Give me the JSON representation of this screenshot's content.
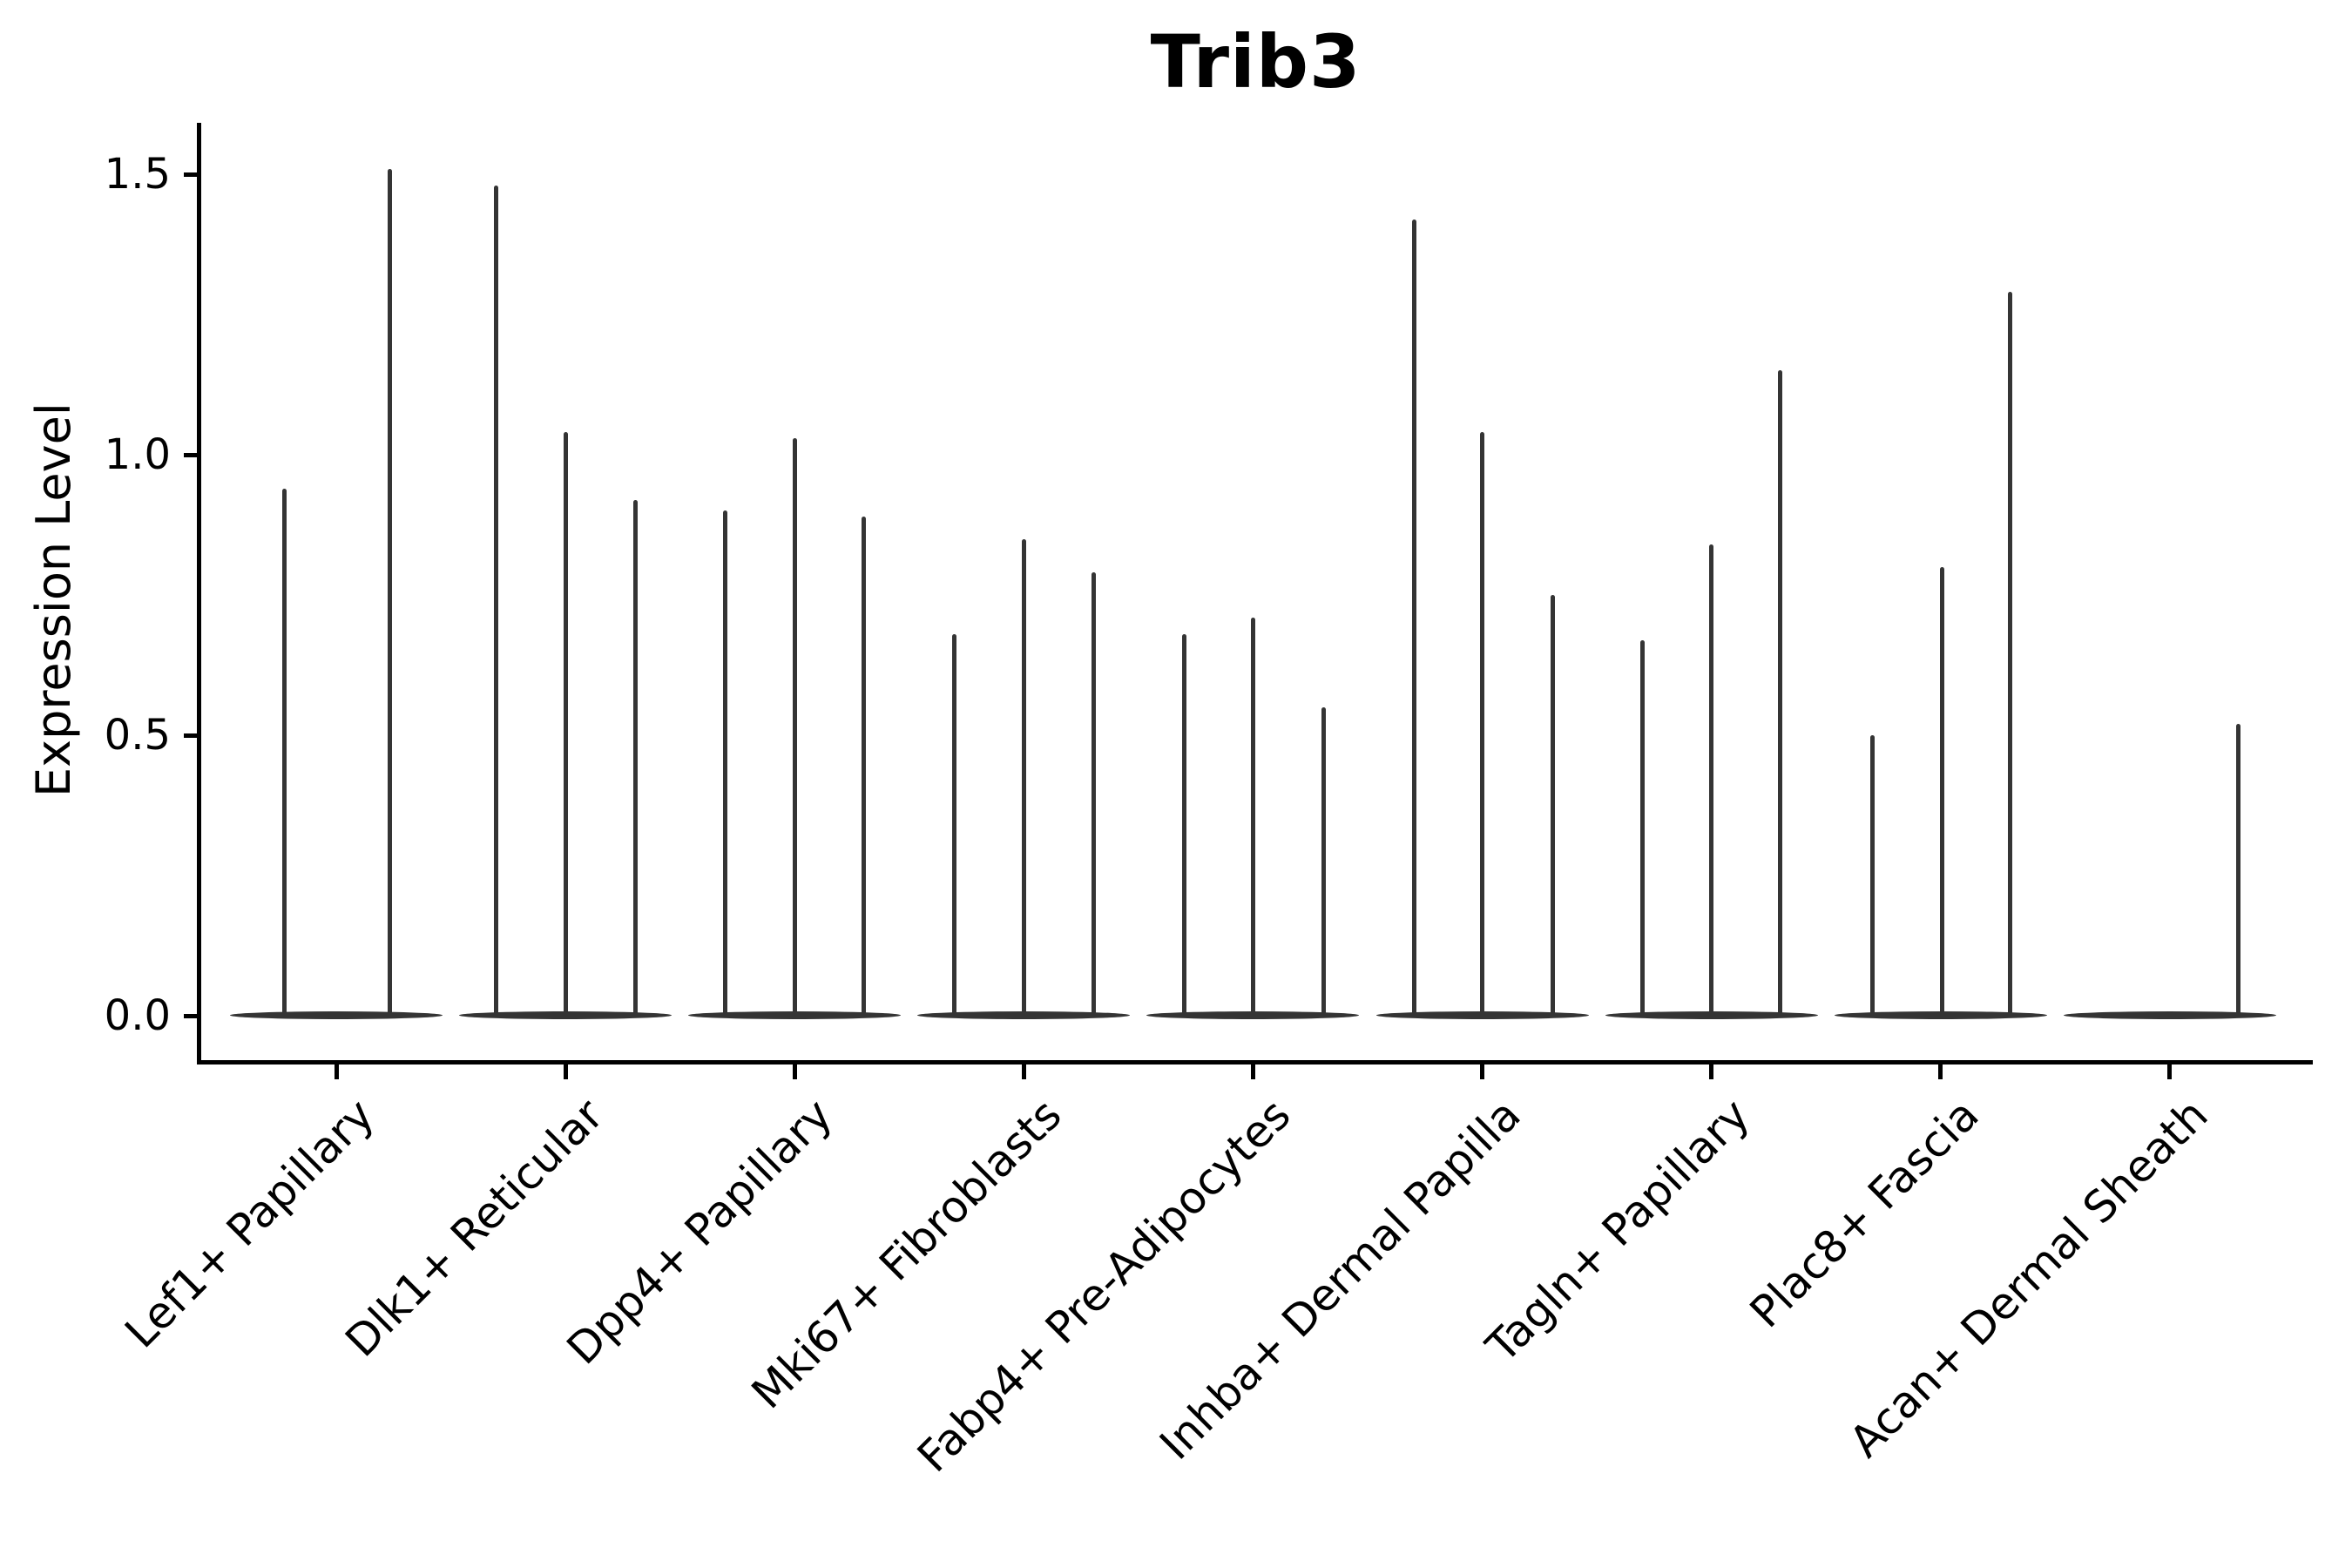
{
  "figure": {
    "background": "#ffffff"
  },
  "chart_data": {
    "type": "violin",
    "title": "Trib3",
    "ylabel": "Expression Level",
    "xlabel": "",
    "ylim": [
      -0.08,
      1.59
    ],
    "grid": false,
    "legend": null,
    "colors": {
      "violin": "#343434",
      "axis": "#000000",
      "text": "#000000"
    },
    "yticks": [
      {
        "value": 0.0,
        "label": "0.0"
      },
      {
        "value": 0.5,
        "label": "0.5"
      },
      {
        "value": 1.0,
        "label": "1.0"
      },
      {
        "value": 1.5,
        "label": "1.5"
      }
    ],
    "categories": [
      "Lef1+ Papillary",
      "Dlk1+ Reticular",
      "Dpp4+ Papillary",
      "Mki67+ Fibroblasts",
      "Fabp4+ Pre-Adipocytes",
      "Inhba+ Dermal Papilla",
      "Tagln+ Papillary",
      "Plac8+ Fascia",
      "Acan+ Dermal Sheath"
    ],
    "series": [
      {
        "category": "Lef1+ Papillary",
        "spikes": [
          {
            "offset": -60,
            "value": 0.94
          },
          {
            "offset": 61,
            "value": 1.51
          }
        ]
      },
      {
        "category": "Dlk1+ Reticular",
        "spikes": [
          {
            "offset": -80,
            "value": 1.48
          },
          {
            "offset": 0,
            "value": 1.04
          },
          {
            "offset": 80,
            "value": 0.92
          }
        ]
      },
      {
        "category": "Dpp4+ Papillary",
        "spikes": [
          {
            "offset": -80,
            "value": 0.9
          },
          {
            "offset": 0,
            "value": 1.03
          },
          {
            "offset": 79,
            "value": 0.89
          }
        ]
      },
      {
        "category": "Mki67+ Fibroblasts",
        "spikes": [
          {
            "offset": -80,
            "value": 0.68
          },
          {
            "offset": 0,
            "value": 0.85
          },
          {
            "offset": 80,
            "value": 0.79
          }
        ]
      },
      {
        "category": "Fabp4+ Pre-Adipocytes",
        "spikes": [
          {
            "offset": -79,
            "value": 0.68
          },
          {
            "offset": 0,
            "value": 0.71
          },
          {
            "offset": 81,
            "value": 0.55
          }
        ]
      },
      {
        "category": "Inhba+ Dermal Papilla",
        "spikes": [
          {
            "offset": -78,
            "value": 1.42
          },
          {
            "offset": 0,
            "value": 1.04
          },
          {
            "offset": 81,
            "value": 0.75
          }
        ]
      },
      {
        "category": "Tagln+ Papillary",
        "spikes": [
          {
            "offset": -79,
            "value": 0.67
          },
          {
            "offset": 0,
            "value": 0.84
          },
          {
            "offset": 79,
            "value": 1.15
          }
        ]
      },
      {
        "category": "Plac8+ Fascia",
        "spikes": [
          {
            "offset": -78,
            "value": 0.5
          },
          {
            "offset": 2,
            "value": 0.8
          },
          {
            "offset": 80,
            "value": 1.29
          }
        ]
      },
      {
        "category": "Acan+ Dermal Sheath",
        "spikes": [
          {
            "offset": 79,
            "value": 0.52
          }
        ]
      }
    ]
  }
}
